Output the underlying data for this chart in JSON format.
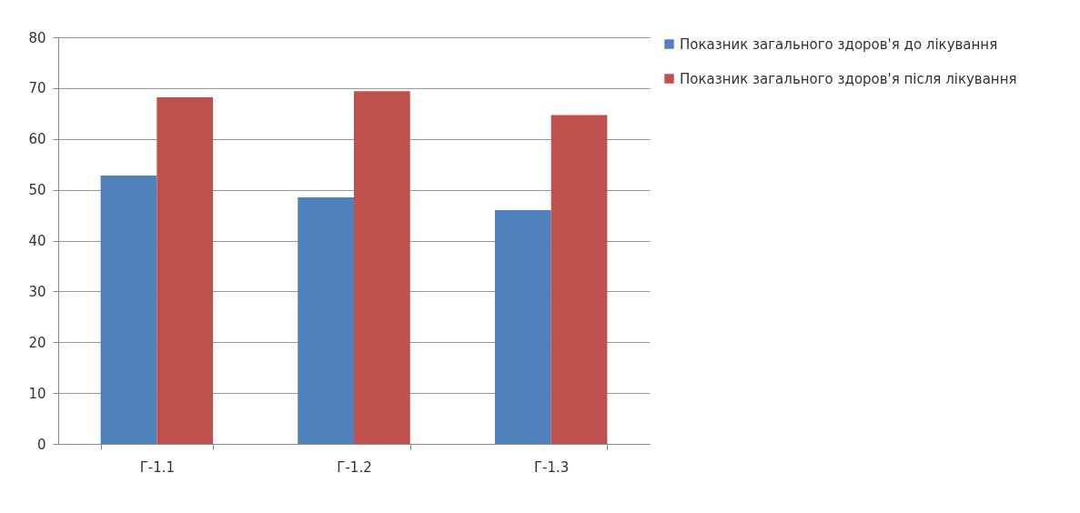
{
  "chart_data": {
    "type": "bar",
    "categories": [
      "Г-1.1",
      "Г-1.2",
      "Г-1.3"
    ],
    "series": [
      {
        "name": "Показник загального здоров'я до лікування",
        "color": "#4f81bd",
        "values": [
          52.8,
          48.5,
          46.0
        ]
      },
      {
        "name": "Показник загального здоров'я після лікування",
        "color": "#c0504d",
        "values": [
          68.2,
          69.4,
          64.7
        ]
      }
    ],
    "ylim": [
      0,
      80
    ],
    "yticks": [
      0,
      10,
      20,
      30,
      40,
      50,
      60,
      70,
      80
    ],
    "grid": "y",
    "legend": "right"
  }
}
